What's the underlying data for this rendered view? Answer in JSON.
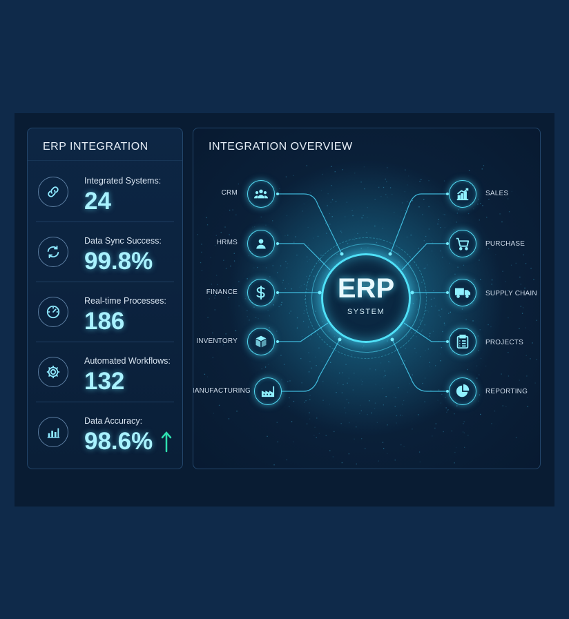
{
  "left_panel": {
    "title": "ERP INTEGRATION",
    "metrics": [
      {
        "label": "Integrated Systems:",
        "value": "24",
        "icon": "link-icon"
      },
      {
        "label": "Data Sync Success:",
        "value": "99.8%",
        "icon": "sync-icon"
      },
      {
        "label": "Real-time Processes:",
        "value": "186",
        "icon": "gauge-icon"
      },
      {
        "label": "Automated Workflows:",
        "value": "132",
        "icon": "gear-icon"
      },
      {
        "label": "Data Accuracy:",
        "value": "98.6%",
        "icon": "bar-chart-icon",
        "trend": "up"
      }
    ]
  },
  "right_panel": {
    "title": "INTEGRATION OVERVIEW",
    "hub": {
      "title": "ERP",
      "subtitle": "SYSTEM"
    },
    "left_modules": [
      {
        "label": "CRM",
        "icon": "users-icon"
      },
      {
        "label": "HRMS",
        "icon": "person-icon"
      },
      {
        "label": "FINANCE",
        "icon": "dollar-icon"
      },
      {
        "label": "INVENTORY",
        "icon": "box-icon"
      },
      {
        "label": "MANUFACTURING",
        "icon": "factory-icon"
      }
    ],
    "right_modules": [
      {
        "label": "SALES",
        "icon": "growth-chart-icon"
      },
      {
        "label": "PURCHASE",
        "icon": "cart-icon"
      },
      {
        "label": "SUPPLY CHAIN",
        "icon": "truck-icon"
      },
      {
        "label": "PROJECTS",
        "icon": "clipboard-icon"
      },
      {
        "label": "REPORTING",
        "icon": "pie-chart-icon"
      }
    ]
  },
  "colors": {
    "accent": "#53d9f2",
    "value_text": "#a9f2ff",
    "background": "#0f2a4a",
    "trend": "#2fe0b0"
  }
}
